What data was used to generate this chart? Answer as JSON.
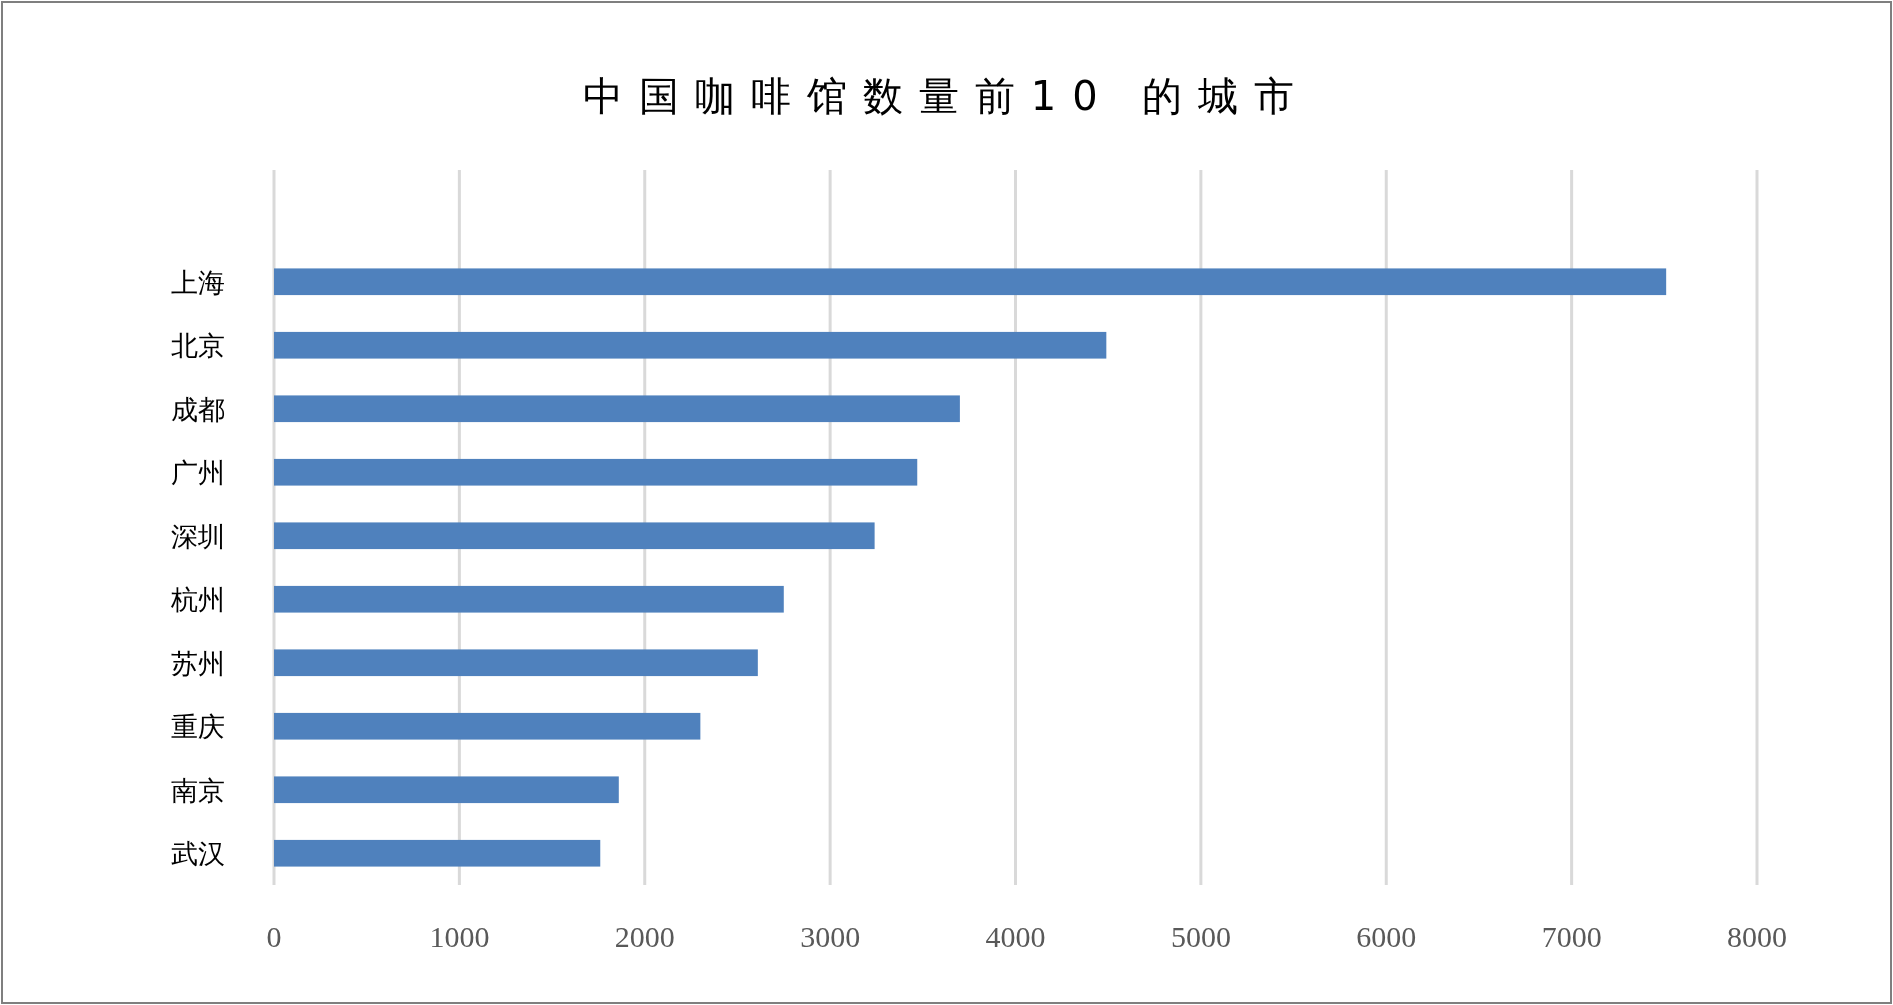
{
  "chart_data": {
    "type": "bar",
    "orientation": "horizontal",
    "title": "中国咖啡馆数量前10 的城市",
    "categories": [
      "上海",
      "北京",
      "成都",
      "广州",
      "深圳",
      "杭州",
      "苏州",
      "重庆",
      "南京",
      "武汉"
    ],
    "values": [
      7510,
      4490,
      3700,
      3470,
      3240,
      2750,
      2610,
      2300,
      1860,
      1760
    ],
    "color": "#4f81bd",
    "xlim": [
      0,
      8000
    ],
    "xticks": [
      0,
      1000,
      2000,
      3000,
      4000,
      5000,
      6000,
      7000,
      8000
    ],
    "grid": "x"
  }
}
